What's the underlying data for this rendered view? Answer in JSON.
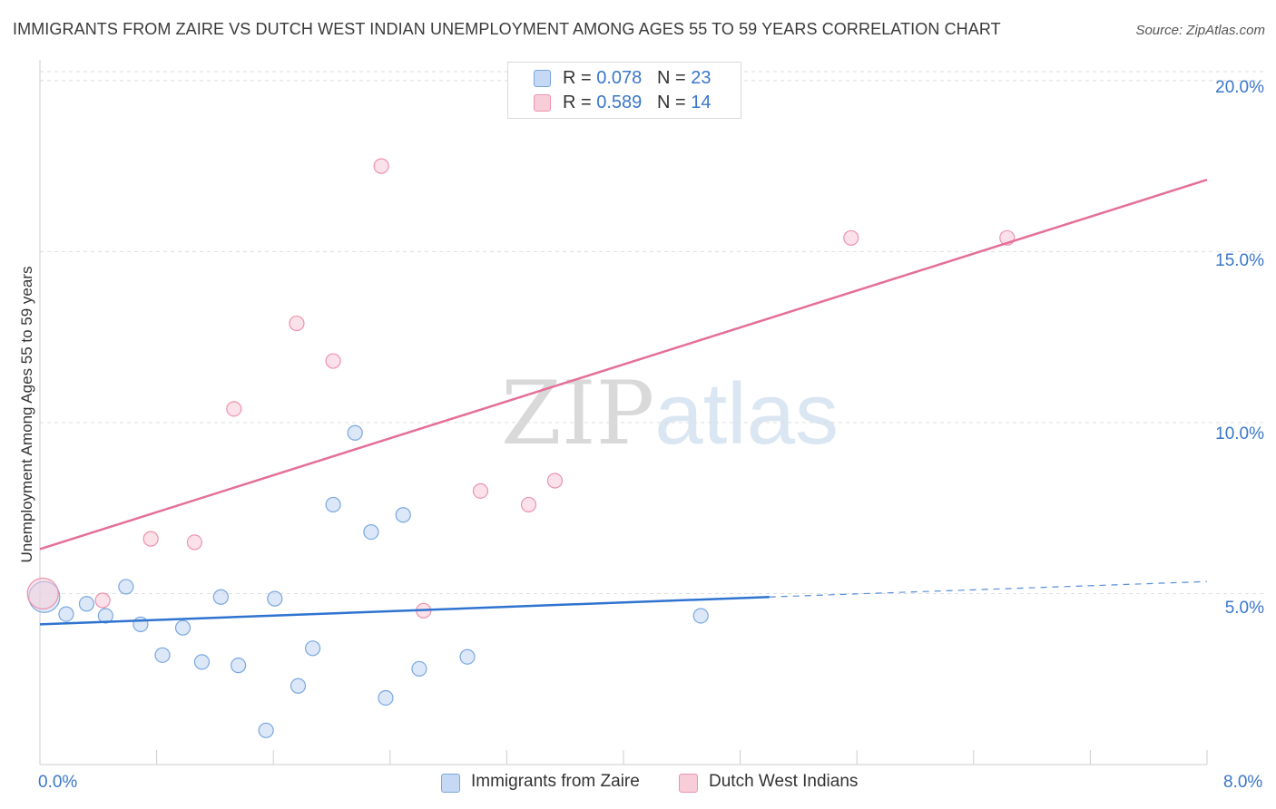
{
  "title": "IMMIGRANTS FROM ZAIRE VS DUTCH WEST INDIAN UNEMPLOYMENT AMONG AGES 55 TO 59 YEARS CORRELATION CHART",
  "source": "Source: ZipAtlas.com",
  "watermark": {
    "zip": "ZIP",
    "atlas": "atlas"
  },
  "legend": {
    "r_label": "R =",
    "n_label": "N =",
    "rows": [
      {
        "r": "0.078",
        "n": "23"
      },
      {
        "r": "0.589",
        "n": "14"
      }
    ]
  },
  "colors": {
    "zaire_fill": "#c5d9f4",
    "zaire_stroke": "#7aa7e0",
    "zaire_line": "#2f73d0",
    "dwi_fill": "#f8cdda",
    "dwi_stroke": "#ee92ac",
    "dwi_line": "#e46f98",
    "tick_text": "#3a77c9",
    "grid": "#dddddd"
  },
  "chart_data": {
    "type": "scatter",
    "title": "IMMIGRANTS FROM ZAIRE VS DUTCH WEST INDIAN UNEMPLOYMENT AMONG AGES 55 TO 59 YEARS CORRELATION CHART",
    "xlabel": "",
    "ylabel": "Unemployment Among Ages 55 to 59 years",
    "xlim": [
      0,
      8.0
    ],
    "ylim": [
      0,
      20.5
    ],
    "x_tick_labels": [
      "0.0%",
      "8.0%"
    ],
    "y_ticks": [
      5,
      10,
      15,
      20
    ],
    "y_tick_labels": [
      "5.0%",
      "10.0%",
      "15.0%",
      "20.0%"
    ],
    "series": [
      {
        "name": "Immigrants from Zaire",
        "points": [
          {
            "x": 0.03,
            "y": 4.9,
            "big": true
          },
          {
            "x": 0.18,
            "y": 4.4
          },
          {
            "x": 0.32,
            "y": 4.7
          },
          {
            "x": 0.45,
            "y": 4.35
          },
          {
            "x": 0.59,
            "y": 5.2
          },
          {
            "x": 0.69,
            "y": 4.1
          },
          {
            "x": 0.84,
            "y": 3.2
          },
          {
            "x": 0.98,
            "y": 4.0
          },
          {
            "x": 1.11,
            "y": 3.0
          },
          {
            "x": 1.24,
            "y": 4.9
          },
          {
            "x": 1.36,
            "y": 2.9
          },
          {
            "x": 1.55,
            "y": 1.0
          },
          {
            "x": 1.61,
            "y": 4.85
          },
          {
            "x": 1.77,
            "y": 2.3
          },
          {
            "x": 1.87,
            "y": 3.4
          },
          {
            "x": 2.01,
            "y": 7.6
          },
          {
            "x": 2.16,
            "y": 9.7
          },
          {
            "x": 2.27,
            "y": 6.8
          },
          {
            "x": 2.37,
            "y": 1.95
          },
          {
            "x": 2.49,
            "y": 7.3
          },
          {
            "x": 2.6,
            "y": 2.8
          },
          {
            "x": 2.93,
            "y": 3.15
          },
          {
            "x": 4.53,
            "y": 4.35
          }
        ],
        "trend": {
          "x0": 0,
          "y0": 4.1,
          "x1": 5.0,
          "y1": 4.9,
          "dashed_to_x": 8.0,
          "dashed_to_y": 5.35
        }
      },
      {
        "name": "Dutch West Indians",
        "points": [
          {
            "x": 0.02,
            "y": 5.0,
            "big": true
          },
          {
            "x": 0.43,
            "y": 4.8
          },
          {
            "x": 0.76,
            "y": 6.6
          },
          {
            "x": 1.06,
            "y": 6.5
          },
          {
            "x": 1.33,
            "y": 10.4
          },
          {
            "x": 1.76,
            "y": 12.9
          },
          {
            "x": 2.01,
            "y": 11.8
          },
          {
            "x": 2.34,
            "y": 17.5
          },
          {
            "x": 2.63,
            "y": 4.5
          },
          {
            "x": 3.02,
            "y": 8.0
          },
          {
            "x": 3.35,
            "y": 7.6
          },
          {
            "x": 3.53,
            "y": 8.3
          },
          {
            "x": 5.56,
            "y": 15.4
          },
          {
            "x": 6.63,
            "y": 15.4
          }
        ],
        "trend": {
          "x0": 0,
          "y0": 6.3,
          "x1": 8.0,
          "y1": 17.1
        }
      }
    ]
  },
  "bottom_legend": [
    "Immigrants from Zaire",
    "Dutch West Indians"
  ]
}
